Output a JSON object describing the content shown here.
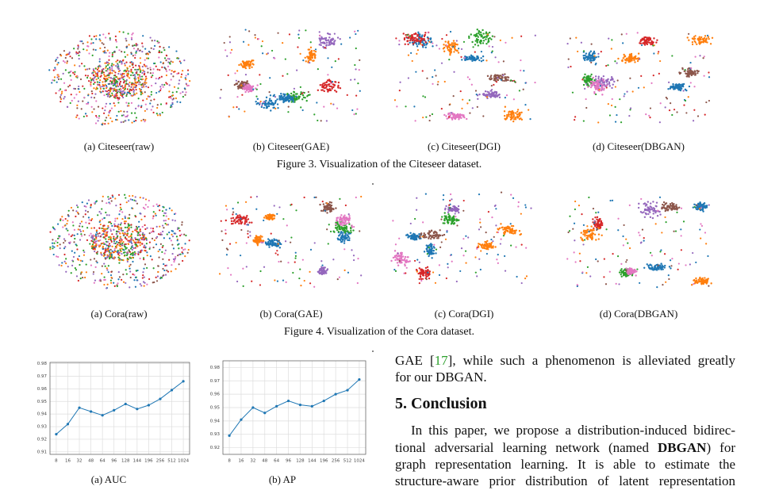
{
  "figure3": {
    "panels": [
      "(a) Citeseer(raw)",
      "(b) Citeseer(GAE)",
      "(c) Citeseer(DGI)",
      "(d) Citeseer(DBGAN)"
    ],
    "caption": "Figure 3. Visualization of the Citeseer dataset."
  },
  "figure4": {
    "panels": [
      "(a) Cora(raw)",
      "(b) Cora(GAE)",
      "(c) Cora(DGI)",
      "(d) Cora(DBGAN)"
    ],
    "caption": "Figure 4. Visualization of the Cora dataset."
  },
  "chart_data": [
    {
      "type": "line",
      "caption": "(a) AUC",
      "categories": [
        "8",
        "16",
        "32",
        "48",
        "64",
        "96",
        "128",
        "144",
        "196",
        "256",
        "512",
        "1024"
      ],
      "values": [
        0.924,
        0.932,
        0.945,
        0.942,
        0.939,
        0.943,
        0.948,
        0.944,
        0.947,
        0.952,
        0.959,
        0.966
      ],
      "color": "#1f77b4",
      "ylim": [
        0.908,
        0.981
      ],
      "yticks": [
        0.91,
        0.92,
        0.93,
        0.94,
        0.95,
        0.96,
        0.97,
        0.98
      ],
      "grid": true
    },
    {
      "type": "line",
      "caption": "(b) AP",
      "categories": [
        "8",
        "16",
        "32",
        "48",
        "64",
        "96",
        "128",
        "144",
        "196",
        "256",
        "512",
        "1024"
      ],
      "values": [
        0.929,
        0.941,
        0.95,
        0.946,
        0.951,
        0.955,
        0.952,
        0.951,
        0.955,
        0.96,
        0.963,
        0.971
      ],
      "color": "#1f77b4",
      "ylim": [
        0.915,
        0.985
      ],
      "yticks": [
        0.92,
        0.93,
        0.94,
        0.95,
        0.96,
        0.97,
        0.98
      ],
      "grid": true
    }
  ],
  "body": {
    "line1": [
      "GAE [",
      "17",
      "], while such a phenomenon is alleviated greatly"
    ],
    "line2": "for our DBGAN.",
    "heading": "5. Conclusion",
    "para": [
      [
        "In this paper, we propose a distribution-induced bidirec-"
      ],
      [
        "tional adversarial learning network (named ",
        "DBGAN",
        ") for"
      ],
      [
        "graph representation learning.  It is able to estimate the"
      ],
      [
        "structure-aware prior distribution of latent representation"
      ]
    ]
  }
}
